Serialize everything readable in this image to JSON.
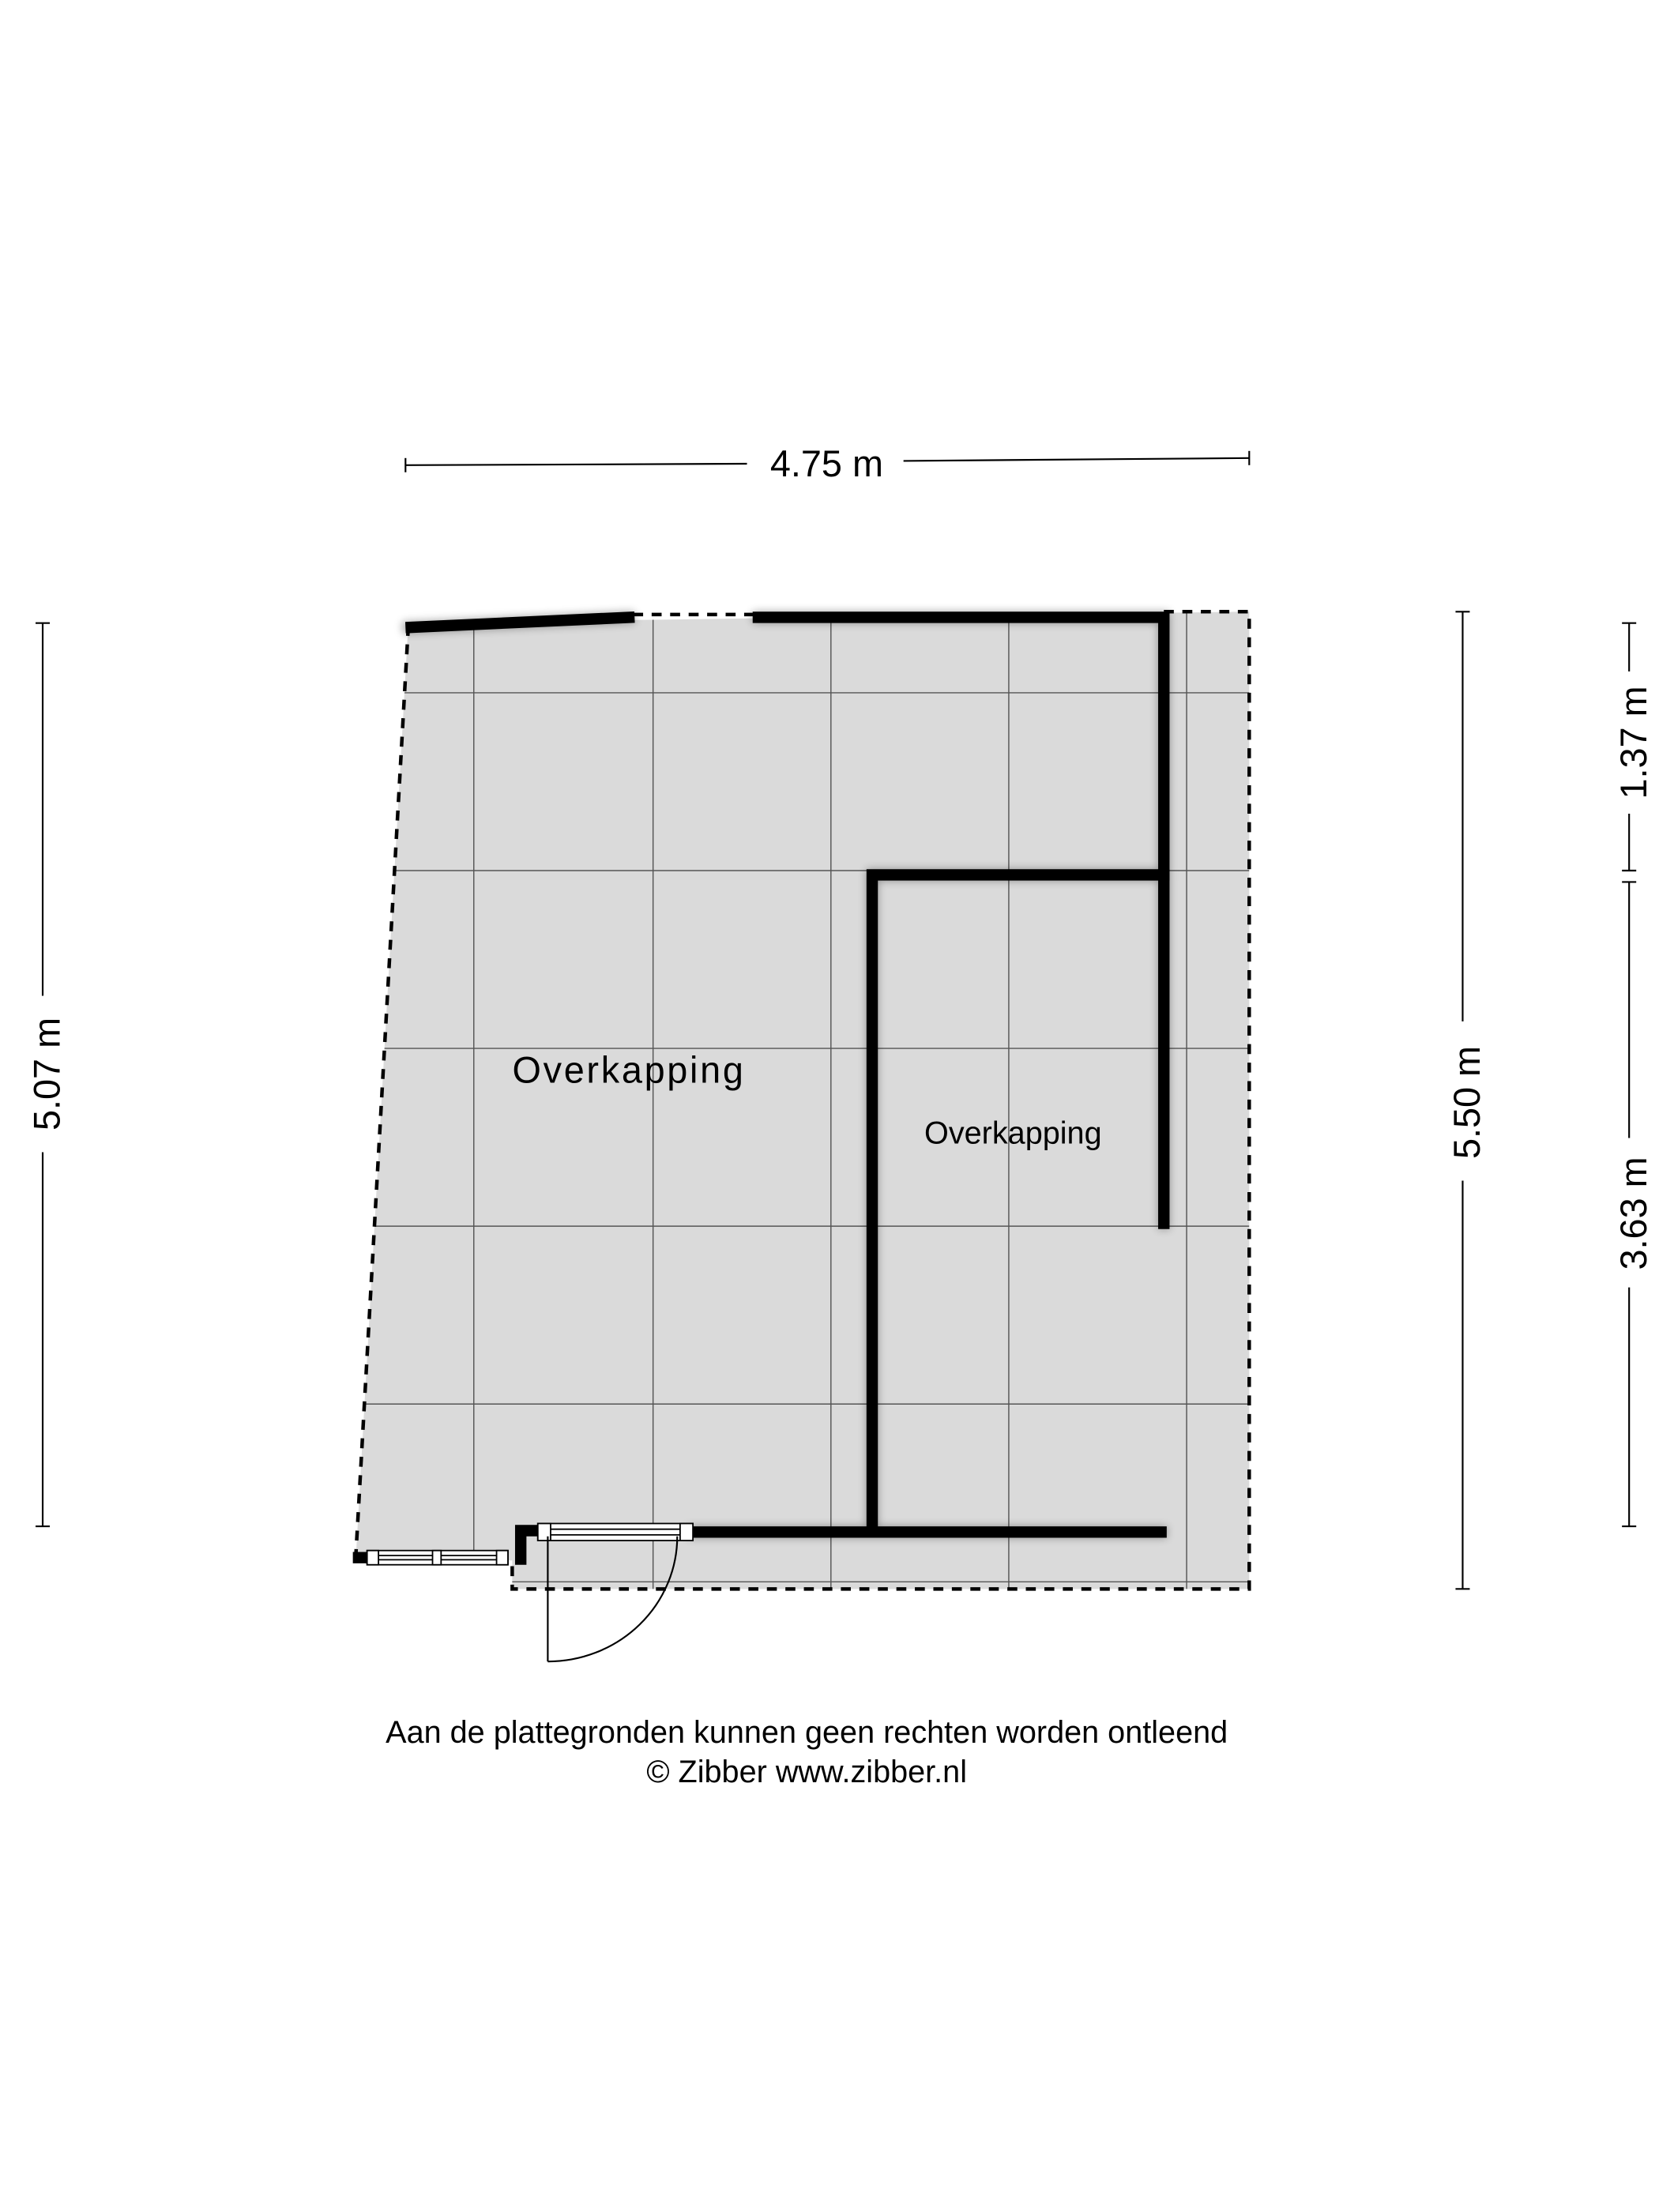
{
  "dimensions": {
    "top_width": "4.75 m",
    "left_height": "5.07 m",
    "right_height": "5.50 m",
    "right_upper": "1.37 m",
    "right_lower": "3.63 m"
  },
  "rooms": [
    {
      "label": "Overkapping"
    },
    {
      "label": "Overkapping"
    }
  ],
  "footer": {
    "disclaimer": "Aan de plattegronden kunnen geen rechten worden ontleend",
    "copyright": "© Zibber www.zibber.nl"
  },
  "colors": {
    "floor": "#dadada",
    "wall": "#000000",
    "grid": "#555555"
  }
}
